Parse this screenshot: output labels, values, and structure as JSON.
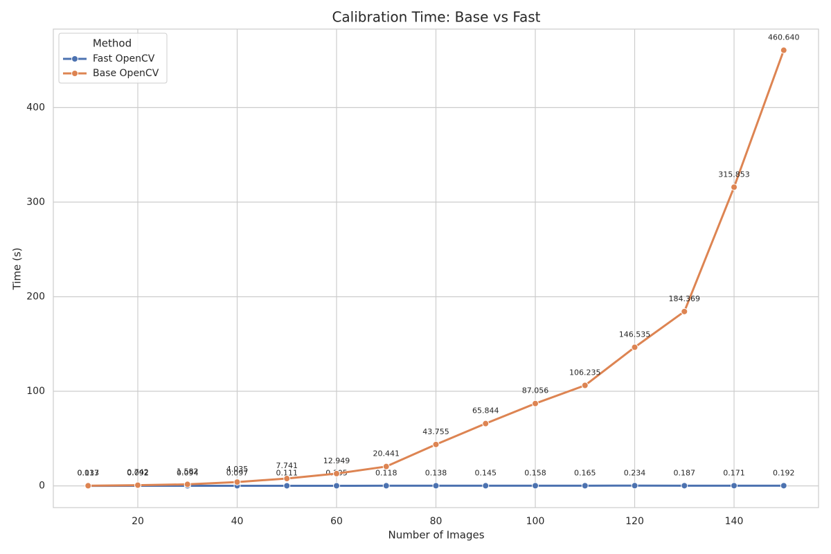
{
  "chart_data": {
    "type": "line",
    "title": "Calibration Time: Base vs Fast",
    "x_label": "Number of Images",
    "y_label": "Time (s)",
    "legend_title": "Method",
    "legend_position": "upper left",
    "grid": true,
    "x": [
      10,
      20,
      30,
      40,
      50,
      60,
      70,
      80,
      90,
      100,
      110,
      120,
      130,
      140,
      150
    ],
    "series": [
      {
        "name": "Fast OpenCV",
        "color": "#4c72b0",
        "values": [
          0.017,
          0.092,
          0.094,
          0.097,
          0.111,
          0.105,
          0.118,
          0.138,
          0.145,
          0.158,
          0.165,
          0.234,
          0.187,
          0.171,
          0.192
        ],
        "value_labels": [
          "0.017",
          "0.092",
          "0.094",
          "0.097",
          "0.111",
          "0.105",
          "0.118",
          "0.138",
          "0.145",
          "0.158",
          "0.165",
          "0.234",
          "0.187",
          "0.171",
          "0.192"
        ]
      },
      {
        "name": "Base OpenCV",
        "color": "#dd8452",
        "values": [
          0.133,
          0.742,
          1.582,
          4.035,
          7.741,
          12.949,
          20.441,
          43.755,
          65.844,
          87.056,
          106.235,
          146.535,
          184.369,
          315.853,
          460.64
        ],
        "value_labels": [
          "0.133",
          "0.742",
          "1.582",
          "4.035",
          "7.741",
          "12.949",
          "20.441",
          "43.755",
          "65.844",
          "87.056",
          "106.235",
          "146.535",
          "184.369",
          "315.853",
          "460.640"
        ]
      }
    ],
    "xlim": [
      3,
      157
    ],
    "xticks": [
      20,
      40,
      60,
      80,
      100,
      120,
      140
    ],
    "ylim": [
      -23,
      483
    ],
    "yticks": [
      0,
      100,
      200,
      300,
      400
    ]
  }
}
